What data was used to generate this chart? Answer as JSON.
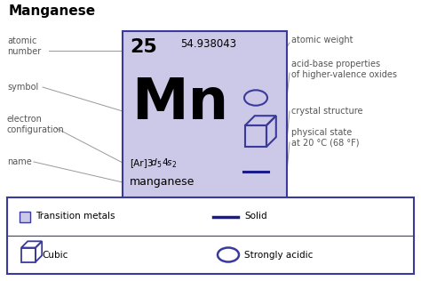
{
  "title": "Manganese",
  "atomic_number": "25",
  "atomic_weight": "54.938043",
  "symbol": "Mn",
  "name": "manganese",
  "bg_color": "#ccc8e8",
  "border_color": "#3a3a9a",
  "icon_color": "#3a3a9a",
  "label_color": "#555555",
  "line_color": "#1a1a8a",
  "left_labels": [
    "atomic\nnumber",
    "symbol",
    "electron\nconfiguration",
    "name"
  ],
  "right_labels": [
    "atomic weight",
    "acid-base properties\nof higher-valence oxides",
    "crystal structure",
    "physical state\nat 20 °C (68 °F)"
  ]
}
